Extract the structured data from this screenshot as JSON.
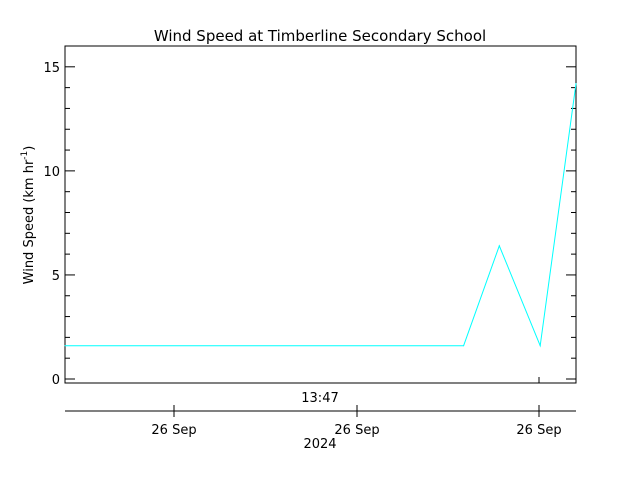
{
  "chart_data": {
    "type": "line",
    "title": "Wind Speed at Timberline Secondary School",
    "ylabel": "Wind Speed (km hr",
    "ylabel_superscript": "-1",
    "ylabel_close": ")",
    "ylim": [
      0,
      16
    ],
    "y_ticks": [
      0,
      5,
      10,
      15
    ],
    "y_tick_labels": [
      "0",
      "5",
      "10",
      "15"
    ],
    "top_axis_time_label": "13:47",
    "x_tick_labels": [
      "26 Sep",
      "26 Sep",
      "26 Sep"
    ],
    "x_year_label": "2024",
    "grid": false,
    "series": [
      {
        "color": "#00ffff",
        "x": [
          0,
          0.78,
          0.85,
          0.93,
          1.0
        ],
        "values": [
          1.6,
          1.6,
          6.4,
          1.6,
          14.2
        ]
      }
    ]
  }
}
